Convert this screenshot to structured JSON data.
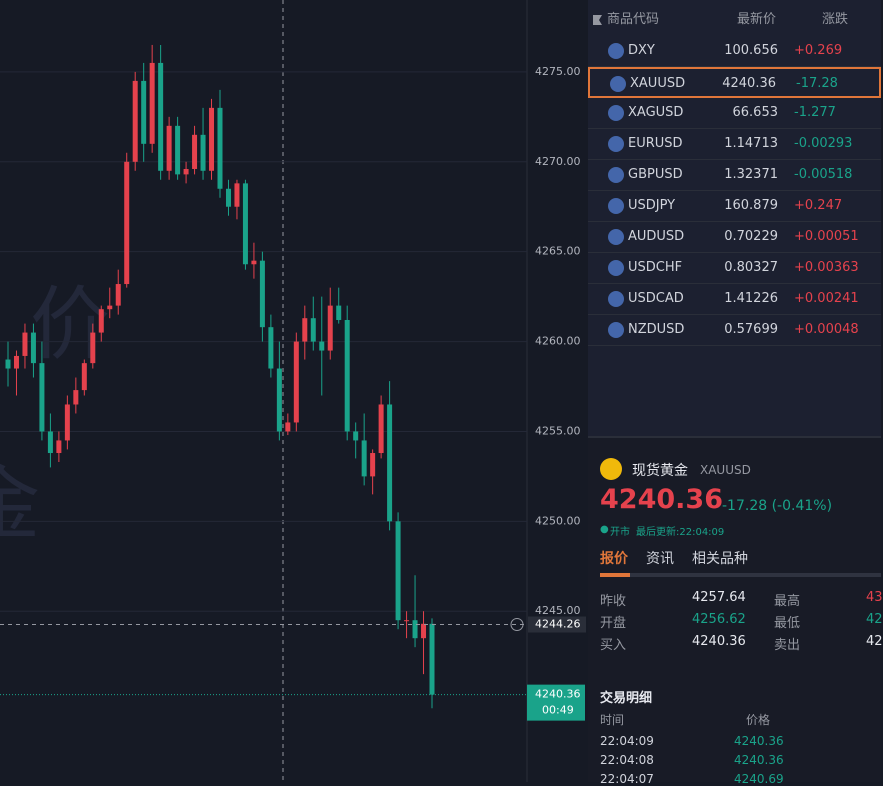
{
  "chart_data": {
    "type": "candlestick",
    "ylim": [
      4235.5,
      4279.0
    ],
    "yticks": [
      {
        "value": 4245,
        "label": "4245.00"
      },
      {
        "value": 4250,
        "label": "4250.00"
      },
      {
        "value": 4255,
        "label": "4255.00"
      },
      {
        "value": 4260,
        "label": "4260.00"
      },
      {
        "value": 4265,
        "label": "4265.00"
      },
      {
        "value": 4270,
        "label": "4270.00"
      },
      {
        "value": 4275,
        "label": "4275.00"
      }
    ],
    "up_color": "#e5424d",
    "down_color": "#1aa38a",
    "open": [
      4259,
      4258.5,
      4259.2,
      4260.5,
      4258.8,
      4255,
      4253.8,
      4254.5,
      4256.5,
      4257.3,
      4258.8,
      4260.5,
      4261.8,
      4262,
      4263.2,
      4270,
      4274.5,
      4271,
      4275.5,
      4269.5,
      4272,
      4269.3,
      4269.6,
      4271.5,
      4269.5,
      4273,
      4268.5,
      4267.5,
      4268.8,
      4264.3,
      4264.5,
      4260.8,
      4258.5,
      4255,
      4255.5,
      4260,
      4261.3,
      4260,
      4259.5,
      4262,
      4261.2,
      4255,
      4254.5,
      4252.5,
      4253.8,
      4256.5,
      4250,
      4244.5,
      4244.5,
      4243.5,
      4244.3
    ],
    "high": [
      4260,
      4259.5,
      4261,
      4261,
      4260,
      4256,
      4255,
      4257,
      4258,
      4259,
      4261,
      4262,
      4263,
      4264,
      4270.5,
      4275,
      4275.5,
      4276.5,
      4276.5,
      4272.5,
      4272.5,
      4270,
      4272,
      4273,
      4273.5,
      4274,
      4269,
      4269,
      4269,
      4265.5,
      4265,
      4261.5,
      4260,
      4256,
      4260.5,
      4262,
      4262.5,
      4262.5,
      4263,
      4263,
      4262,
      4255.5,
      4256,
      4254,
      4257,
      4257.8,
      4250.5,
      4245,
      4247,
      4245,
      4244.6
    ],
    "low": [
      4257.5,
      4257,
      4258.5,
      4258,
      4254.5,
      4253,
      4253.3,
      4254,
      4256,
      4257,
      4258.5,
      4260,
      4261.3,
      4261.5,
      4263,
      4269.5,
      4270,
      4270.5,
      4269,
      4269,
      4269,
      4268.8,
      4269.3,
      4269,
      4269,
      4268,
      4267,
      4266.8,
      4264,
      4263.5,
      4260,
      4258,
      4254.5,
      4254.8,
      4255,
      4259,
      4259.5,
      4257,
      4259,
      4261,
      4254.5,
      4253.5,
      4252,
      4251.5,
      4253.5,
      4249.5,
      4244,
      4243.5,
      4243,
      4241.5,
      4239.6
    ],
    "close": [
      4258.5,
      4259.2,
      4260.5,
      4258.8,
      4255,
      4253.8,
      4254.5,
      4256.5,
      4257.3,
      4258.8,
      4260.5,
      4261.8,
      4262,
      4263.2,
      4270,
      4274.5,
      4271,
      4275.5,
      4269.5,
      4272,
      4269.3,
      4269.6,
      4271.5,
      4269.5,
      4273,
      4268.5,
      4267.5,
      4268.8,
      4264.3,
      4264.5,
      4260.8,
      4258.5,
      4255,
      4255.5,
      4260,
      4261.3,
      4260,
      4259.5,
      4262,
      4261.2,
      4255,
      4254.5,
      4252.5,
      4253.8,
      4256.5,
      4250,
      4244.5,
      4244.5,
      4243.5,
      4244.3,
      4240.36
    ],
    "crosshair": 4244.26,
    "last_price": 4240.36,
    "countdown": "00:49"
  },
  "watermark": [
    "价",
    "金"
  ],
  "watchlist": {
    "header": [
      "商品代码",
      "最新价",
      "涨跌"
    ],
    "rows": [
      {
        "symbol": "DXY",
        "price": "100.656",
        "change": "+0.269"
      },
      {
        "symbol": "XAUUSD",
        "price": "4240.36",
        "change": "-17.28"
      },
      {
        "symbol": "XAGUSD",
        "price": "66.653",
        "change": "-1.277"
      },
      {
        "symbol": "EURUSD",
        "price": "1.14713",
        "change": "-0.00293"
      },
      {
        "symbol": "GBPUSD",
        "price": "1.32371",
        "change": "-0.00518"
      },
      {
        "symbol": "USDJPY",
        "price": "160.879",
        "change": "+0.247"
      },
      {
        "symbol": "AUDUSD",
        "price": "0.70229",
        "change": "+0.00051"
      },
      {
        "symbol": "USDCHF",
        "price": "0.80327",
        "change": "+0.00363"
      },
      {
        "symbol": "USDCAD",
        "price": "1.41226",
        "change": "+0.00241"
      },
      {
        "symbol": "NZDUSD",
        "price": "0.57699",
        "change": "+0.00048"
      }
    ]
  },
  "detail": {
    "name": "现货黄金",
    "symbol": "XAUUSD",
    "price": "4240.36",
    "change": "-17.28 (-0.41%)",
    "status": "开市",
    "updated": "最后更新:22:04:09",
    "tabs": [
      "报价",
      "资讯",
      "相关品种"
    ],
    "stats": [
      [
        "昨收",
        "4257.64",
        "最高",
        "43"
      ],
      [
        "开盘",
        "4256.62",
        "最低",
        "42"
      ],
      [
        "买入",
        "4240.36",
        "卖出",
        "42"
      ]
    ],
    "trades_title": "交易明细",
    "trades_header": [
      "时间",
      "价格"
    ],
    "trades": [
      [
        "22:04:09",
        "4240.36"
      ],
      [
        "22:04:08",
        "4240.36"
      ],
      [
        "22:04:07",
        "4240.69"
      ]
    ]
  }
}
